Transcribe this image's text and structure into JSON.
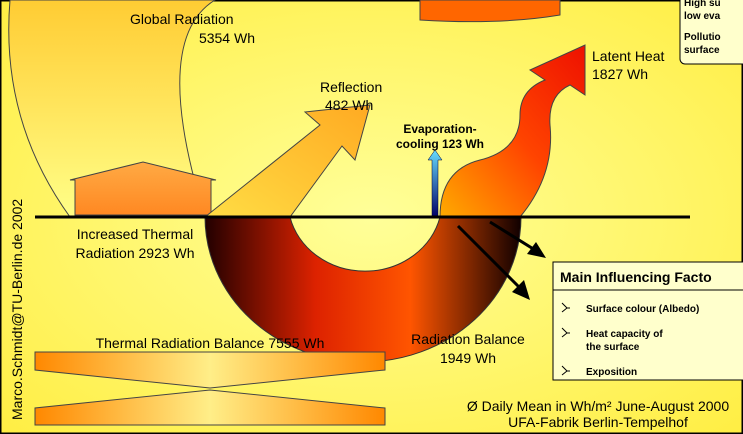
{
  "diagram": {
    "global_radiation": [
      "Global Radiation",
      "5354 Wh"
    ],
    "reflection": [
      "Reflection",
      "482 Wh"
    ],
    "latent_heat": [
      "Latent Heat",
      "1827 Wh"
    ],
    "evaporation_cooling": [
      "Evaporation-",
      "cooling 123 Wh"
    ],
    "thermal_radiation": [
      "Increased Thermal",
      "Radiation 2923 Wh"
    ],
    "radiation_balance": [
      "Radiation Balance",
      "1949 Wh"
    ],
    "thermal_balance": "Thermal Radiation Balance 7555 Wh",
    "footnote": [
      "Ø Daily Mean in Wh/m² June-August 2000",
      "UFA-Fabrik Berlin-Tempelhof"
    ],
    "credit": "Marco.Schmidt@TU-Berlin.de  2002",
    "note_box": [
      "High su",
      "low eva",
      "Pollutio",
      "surface"
    ],
    "factors": {
      "title": "Main Influencing Facto",
      "items": [
        [
          "Surface colour (Albedo)"
        ],
        [
          "Heat capacity of",
          "the surface"
        ],
        [
          "Exposition"
        ]
      ]
    }
  }
}
